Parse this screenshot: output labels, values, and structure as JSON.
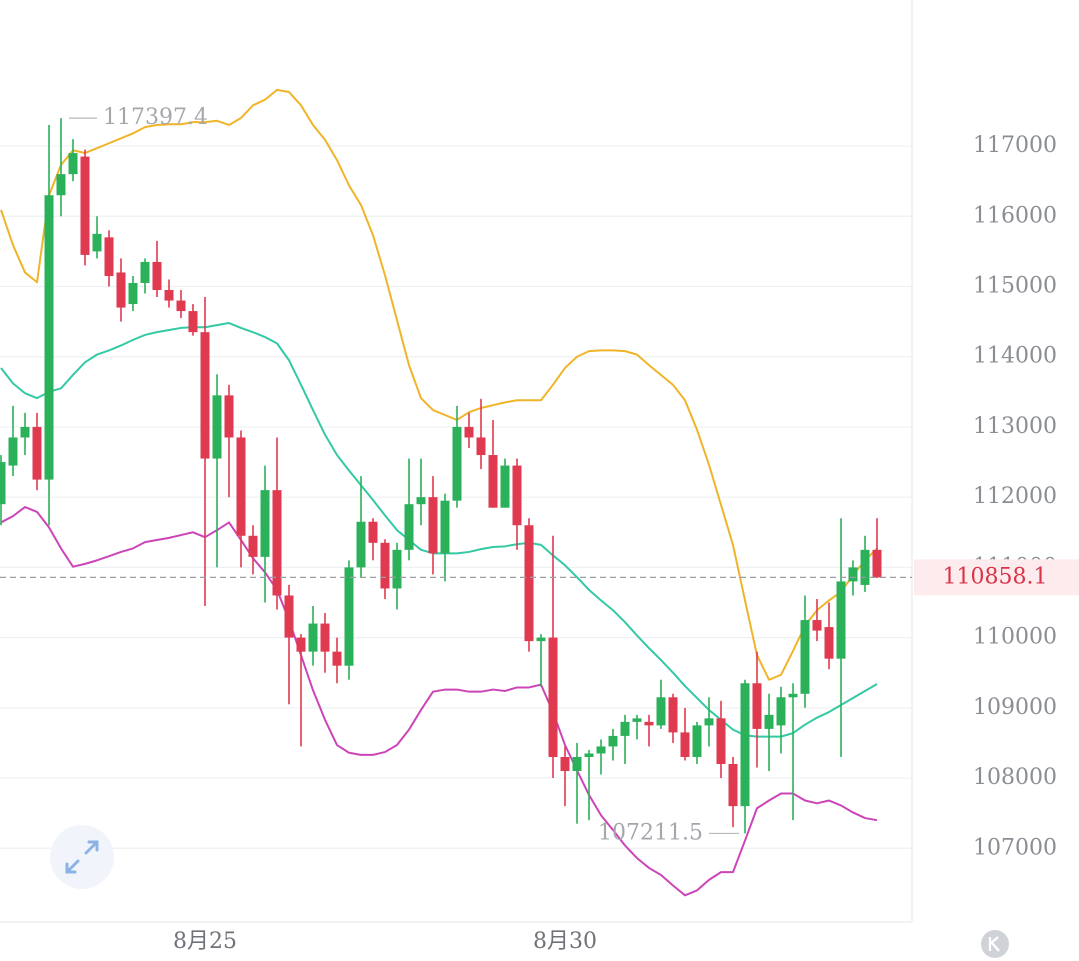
{
  "chart_data": {
    "type": "candlestick",
    "categories": [
      null,
      null,
      null,
      null,
      null,
      null,
      null,
      null,
      null,
      null,
      null,
      null,
      null,
      null,
      null,
      null,
      null,
      "8月25",
      null,
      null,
      null,
      null,
      null,
      null,
      null,
      null,
      null,
      null,
      null,
      null,
      null,
      null,
      null,
      null,
      null,
      null,
      null,
      null,
      null,
      null,
      null,
      null,
      null,
      null,
      null,
      null,
      null,
      "8月30",
      null,
      null,
      null,
      null,
      null,
      null,
      null,
      null,
      null,
      null,
      null,
      null,
      null,
      null,
      null,
      null,
      null,
      null,
      null,
      null,
      null,
      null,
      null,
      null,
      null,
      null
    ],
    "open": [
      111900,
      112450,
      112850,
      113000,
      112250,
      116300,
      116600,
      116850,
      115500,
      115700,
      115200,
      114750,
      115050,
      115350,
      114950,
      114800,
      114650,
      114350,
      112550,
      113450,
      112850,
      111450,
      111150,
      112100,
      110600,
      110000,
      109800,
      110200,
      109800,
      109600,
      111000,
      111650,
      111350,
      110700,
      111250,
      111900,
      112000,
      111200,
      111950,
      113000,
      112850,
      112600,
      111850,
      112450,
      111600,
      109950,
      110000,
      108300,
      108100,
      108300,
      108350,
      108450,
      108600,
      108800,
      108800,
      108750,
      109150,
      108650,
      108300,
      108750,
      108850,
      108200,
      107600,
      109350,
      108700,
      108750,
      109150,
      109200,
      110250,
      110150,
      109700,
      110800,
      110750,
      111250
    ],
    "high": [
      112600,
      113300,
      113200,
      113200,
      117300,
      117397.4,
      117100,
      116950,
      116000,
      115800,
      115400,
      115150,
      115400,
      115650,
      115100,
      114950,
      114750,
      114850,
      113750,
      113600,
      112950,
      111600,
      112450,
      112850,
      110750,
      110050,
      110450,
      110350,
      110000,
      111100,
      112300,
      111700,
      111400,
      111350,
      112550,
      112550,
      112300,
      112050,
      113300,
      113200,
      113400,
      113100,
      112550,
      112550,
      111700,
      110050,
      111450,
      108450,
      108500,
      108400,
      108550,
      108700,
      108900,
      108900,
      108900,
      109400,
      109200,
      109000,
      108800,
      109150,
      109100,
      108300,
      109400,
      109800,
      109200,
      109300,
      109350,
      110600,
      110550,
      110500,
      111700,
      111100,
      111450,
      111700
    ],
    "low": [
      111600,
      112300,
      112600,
      112100,
      111600,
      116000,
      116500,
      115300,
      115400,
      115000,
      114500,
      114650,
      114900,
      114850,
      114700,
      114550,
      114300,
      110450,
      111000,
      112000,
      111000,
      110900,
      110500,
      110400,
      109050,
      108450,
      109600,
      109500,
      109350,
      109400,
      110850,
      111100,
      110550,
      110400,
      111100,
      111600,
      110900,
      110800,
      111850,
      112700,
      112400,
      111850,
      111850,
      111250,
      109800,
      109300,
      108000,
      107600,
      107350,
      107400,
      108050,
      108250,
      108200,
      108550,
      108450,
      108700,
      108500,
      108250,
      108200,
      108450,
      108000,
      107300,
      107211.5,
      108150,
      108100,
      108350,
      107400,
      109000,
      109950,
      109550,
      108300,
      110600,
      110650,
      110850
    ],
    "close": [
      112500,
      112850,
      113000,
      112250,
      116300,
      116600,
      116900,
      115450,
      115750,
      115150,
      114700,
      115050,
      115350,
      114950,
      114800,
      114650,
      114350,
      112550,
      113450,
      112850,
      111450,
      111150,
      112100,
      110600,
      110000,
      109800,
      110200,
      109800,
      109600,
      111000,
      111650,
      111350,
      110700,
      111250,
      111900,
      112000,
      111200,
      111950,
      113000,
      112850,
      112600,
      111850,
      112450,
      111600,
      109950,
      110000,
      108300,
      108100,
      108300,
      108350,
      108450,
      108600,
      108800,
      108850,
      108750,
      109150,
      108650,
      108300,
      108750,
      108850,
      108200,
      107600,
      109350,
      108700,
      108900,
      109150,
      109200,
      110250,
      110100,
      109700,
      110800,
      111000,
      111250,
      110858.1
    ],
    "up_color": "#2bb15a",
    "down_color": "#e03a50",
    "series": [
      {
        "color": "#f0b428",
        "values": [
          116090,
          115590,
          115200,
          115060,
          116300,
          116730,
          116940,
          116900,
          116970,
          117040,
          117110,
          117180,
          117270,
          117300,
          117310,
          117310,
          117340,
          117340,
          117360,
          117300,
          117400,
          117580,
          117660,
          117800,
          117770,
          117580,
          117300,
          117090,
          116800,
          116440,
          116160,
          115730,
          115160,
          114520,
          113880,
          113410,
          113240,
          113170,
          113100,
          113210,
          113270,
          113310,
          113350,
          113380,
          113380,
          113380,
          113600,
          113840,
          114000,
          114080,
          114090,
          114090,
          114080,
          114030,
          113880,
          113740,
          113600,
          113380,
          112960,
          112460,
          111890,
          111320,
          110530,
          109750,
          109400,
          109470,
          109810,
          110170,
          110390,
          110530,
          110650,
          110890,
          111100,
          111270
        ]
      },
      {
        "color": "#33c9a4",
        "values": [
          113840,
          113620,
          113480,
          113410,
          113500,
          113550,
          113740,
          113920,
          114030,
          114090,
          114160,
          114240,
          114310,
          114350,
          114380,
          114410,
          114420,
          114420,
          114450,
          114480,
          114410,
          114350,
          114280,
          114190,
          113950,
          113600,
          113240,
          112890,
          112600,
          112380,
          112170,
          111960,
          111740,
          111530,
          111390,
          111250,
          111200,
          111200,
          111200,
          111220,
          111260,
          111290,
          111300,
          111330,
          111350,
          111320,
          111170,
          111030,
          110860,
          110680,
          110530,
          110390,
          110220,
          110030,
          109850,
          109680,
          109500,
          109310,
          109140,
          108970,
          108830,
          108690,
          108610,
          108590,
          108590,
          108590,
          108640,
          108760,
          108860,
          108940,
          109040,
          109140,
          109240,
          109340
        ]
      },
      {
        "color": "#cc45b8",
        "values": [
          111640,
          111730,
          111860,
          111790,
          111570,
          111270,
          111010,
          111050,
          111100,
          111160,
          111220,
          111270,
          111360,
          111390,
          111420,
          111460,
          111500,
          111430,
          111530,
          111640,
          111390,
          111130,
          110930,
          110680,
          110250,
          109750,
          109250,
          108830,
          108470,
          108360,
          108330,
          108330,
          108370,
          108470,
          108690,
          108970,
          109230,
          109260,
          109260,
          109230,
          109230,
          109260,
          109240,
          109290,
          109290,
          109330,
          108940,
          108470,
          108110,
          107760,
          107470,
          107260,
          107040,
          106860,
          106720,
          106620,
          106470,
          106330,
          106400,
          106550,
          106660,
          106660,
          107110,
          107570,
          107680,
          107780,
          107780,
          107680,
          107640,
          107680,
          107610,
          107510,
          107430,
          107400
        ]
      }
    ],
    "ylim": [
      105950,
      119080
    ],
    "yticks": [
      107000,
      108000,
      109000,
      110000,
      111000,
      112000,
      113000,
      114000,
      115000,
      116000,
      117000
    ],
    "grid": true,
    "high_marker_index": 5,
    "low_marker_index": 62
  }
}
